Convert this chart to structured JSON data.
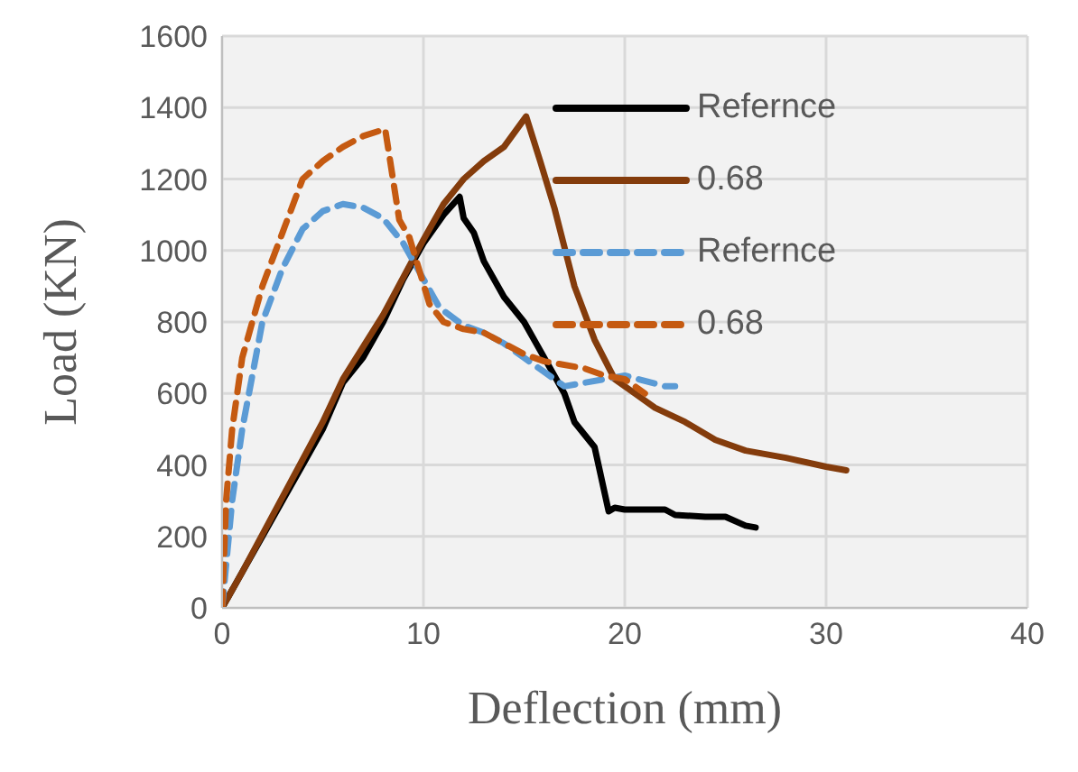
{
  "chart_data": {
    "type": "line",
    "xlabel": "Deflection (mm)",
    "ylabel": "Load (KN)",
    "xlim": [
      0,
      40
    ],
    "xticks": [
      0,
      10,
      20,
      30,
      40
    ],
    "ylim": [
      0,
      1600
    ],
    "yticks": [
      0,
      200,
      400,
      600,
      800,
      1000,
      1200,
      1400,
      1600
    ],
    "grid": true,
    "legend": "top right",
    "marker": "none",
    "series": [
      {
        "name": "Refernce",
        "color": "#000000",
        "line_style": "solid",
        "x": [
          0,
          1,
          2,
          3,
          4,
          5,
          6,
          7,
          8,
          9,
          10,
          11,
          11.8,
          12,
          12.5,
          13,
          14,
          15,
          16,
          17,
          17.5,
          18.5,
          19.2,
          19.5,
          20,
          22,
          22.5,
          24,
          25,
          26,
          26.5
        ],
        "values": [
          0,
          100,
          200,
          300,
          400,
          500,
          630,
          700,
          800,
          920,
          1020,
          1100,
          1150,
          1090,
          1050,
          970,
          870,
          800,
          700,
          600,
          520,
          450,
          270,
          280,
          275,
          275,
          260,
          255,
          255,
          230,
          225
        ]
      },
      {
        "name": "0.68",
        "color": "#843c0c",
        "line_style": "solid",
        "x": [
          0,
          1,
          3,
          5,
          6,
          8,
          10,
          11,
          12,
          13,
          14,
          15.1,
          15.8,
          16.5,
          17.5,
          18.5,
          19.5,
          20.5,
          21.5,
          23,
          24.5,
          26,
          28,
          30,
          31
        ],
        "values": [
          0,
          100,
          310,
          520,
          640,
          820,
          1030,
          1130,
          1200,
          1250,
          1290,
          1375,
          1250,
          1120,
          900,
          750,
          640,
          600,
          560,
          520,
          470,
          440,
          420,
          395,
          385
        ]
      },
      {
        "name": "Refernce",
        "color": "#5b9bd5",
        "line_style": "dashed",
        "x": [
          0,
          0.5,
          1,
          2,
          3,
          4,
          5,
          6,
          7,
          8,
          9,
          10,
          10.8,
          12,
          13,
          14,
          15,
          16,
          17,
          18,
          20,
          22,
          22.5
        ],
        "values": [
          0,
          300,
          500,
          800,
          950,
          1060,
          1110,
          1130,
          1120,
          1090,
          1020,
          920,
          840,
          790,
          770,
          740,
          700,
          660,
          620,
          630,
          650,
          620,
          620
        ]
      },
      {
        "name": "0.68",
        "color": "#c55a11",
        "line_style": "dashed",
        "x": [
          0,
          0.2,
          0.5,
          1,
          2,
          3,
          4,
          5,
          6,
          7,
          8.1,
          8.8,
          9.3,
          10.3,
          11,
          12,
          13,
          14,
          15,
          16,
          18,
          19,
          20,
          21
        ],
        "values": [
          0,
          300,
          500,
          700,
          900,
          1050,
          1200,
          1250,
          1290,
          1320,
          1340,
          1086,
          1037,
          850,
          800,
          780,
          770,
          740,
          710,
          690,
          670,
          650,
          640,
          600
        ]
      }
    ]
  }
}
